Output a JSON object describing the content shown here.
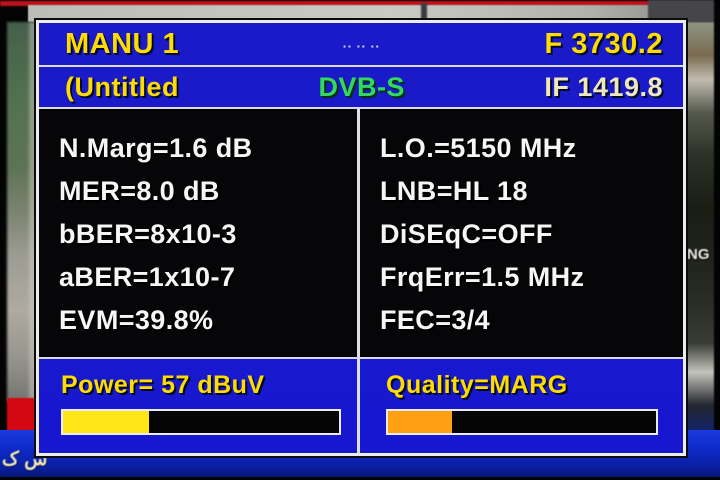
{
  "meter": {
    "header": {
      "channel": "MANU 1",
      "flags": "▪▪ ▪▪ ▪▪",
      "frequency": "F 3730.2",
      "title": "(Untitled",
      "standard": "DVB-S",
      "if_frequency": "IF 1419.8"
    },
    "measurements": {
      "left": [
        "N.Marg=1.6 dB",
        "MER=8.0 dB",
        "bBER=8x10-3",
        "aBER=1x10-7",
        "EVM=39.8%"
      ],
      "right": [
        "L.O.=5150 MHz",
        "LNB=HL 18",
        "DiSEqC=OFF",
        "FrqErr=1.5 MHz",
        "FEC=3/4"
      ]
    },
    "power": {
      "text": "Power= 57 dBuV",
      "bar_percent": 31
    },
    "quality": {
      "text": "Quality=MARG",
      "bar_percent": 24
    }
  },
  "background": {
    "building_text": "NG",
    "ticker_text": "س ک"
  },
  "colors": {
    "panel_blue": "#1717d0",
    "text_yellow": "#ffdc00",
    "text_pale_yellow": "#eee8bc",
    "standard_green": "#33d95e",
    "bar_yellow": "#ffe616",
    "bar_orange": "#ffa014",
    "top_strip_red": "#c0121c",
    "ticker_blue": "#0e28c4",
    "red_block": "#d40812"
  }
}
